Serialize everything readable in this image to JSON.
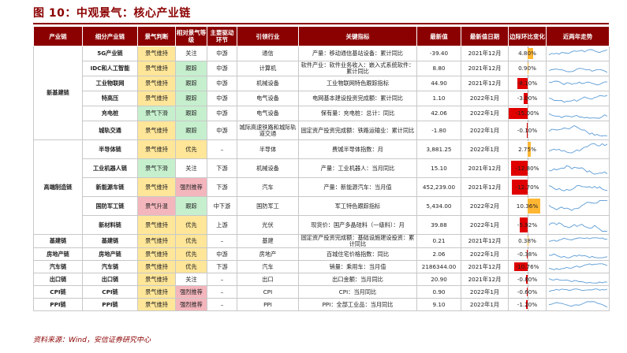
{
  "title": "图 10：中观景气：核心产业链",
  "headers": [
    "产业链",
    "细分产业链",
    "景气判断",
    "相对景气等级",
    "主要驱动环节",
    "引领行业",
    "关键指标",
    "最新值",
    "最新值日期",
    "边际环比变化",
    "近两年走势"
  ],
  "rows": [
    {
      "seg": "新基建链",
      "sub": "5G产业链",
      "judge": "景气维持",
      "judge_color": "yellow",
      "level": "关注",
      "level_color": "white",
      "drive": "中游",
      "industry": "通信",
      "indicator": "产量：移动通信基站设备：累计同比",
      "value": "-39.40",
      "date": "2021年12月",
      "change": "4.80%",
      "change_pct": 4.8
    },
    {
      "seg": "新基建链",
      "sub": "IDC和人工智能",
      "judge": "景气维持",
      "judge_color": "yellow",
      "level": "跟踪",
      "level_color": "green",
      "drive": "中游",
      "industry": "计算机",
      "indicator": "软件产业：软件业务收入：嵌入式系统软件：累计同比",
      "value": "8.80",
      "date": "2021年12月",
      "change": "0.90%",
      "change_pct": 0.9
    },
    {
      "seg": "新基建链",
      "sub": "工业物联网",
      "judge": "景气维持",
      "judge_color": "yellow",
      "level": "跟踪",
      "level_color": "green",
      "drive": "中游",
      "industry": "机械设备",
      "indicator": "工业物联网特色跟踪指标",
      "value": "44.90",
      "date": "2021年12月",
      "change": "-8.10%",
      "change_pct": -8.1
    },
    {
      "seg": "新基建链",
      "sub": "特高压",
      "judge": "景气维持",
      "judge_color": "yellow",
      "level": "跟踪",
      "level_color": "green",
      "drive": "中游",
      "industry": "电气设备",
      "indicator": "电网基本建设投资完成额：累计同比",
      "value": "1.10",
      "date": "2022年1月",
      "change": "-3.00%",
      "change_pct": -3.0
    },
    {
      "seg": "新基建链",
      "sub": "充电桩",
      "judge": "景气下滑",
      "judge_color": "green",
      "level": "跟踪",
      "level_color": "green",
      "drive": "中游",
      "industry": "电气设备",
      "indicator": "保有量：充电桩：总计：同比",
      "value": "42.06",
      "date": "2022年1月",
      "change": "-15.00%",
      "change_pct": -15.0
    },
    {
      "seg": "新基建链",
      "sub": "城轨交通",
      "judge": "景气维持",
      "judge_color": "yellow",
      "level": "跟踪",
      "level_color": "green",
      "drive": "中游",
      "industry": "城际高速铁路和城际轨道交通",
      "indicator": "固定资产投资完成额：铁路运输业：累计同比",
      "value": "-1.80",
      "date": "2022年1月",
      "change": "-0.10%",
      "change_pct": -0.1
    },
    {
      "seg": "高端制造链",
      "sub": "半导体链",
      "judge": "景气维持",
      "judge_color": "yellow",
      "level": "优先",
      "level_color": "yellow",
      "drive": "–",
      "industry": "半导体",
      "indicator": "费城半导体指数：月",
      "value": "3,881.25",
      "date": "2022年1月",
      "change": "2.75%",
      "change_pct": 2.75
    },
    {
      "seg": "高端制造链",
      "sub": "工业机器人链",
      "judge": "景气下滑",
      "judge_color": "green",
      "level": "关注",
      "level_color": "white",
      "drive": "下游",
      "industry": "机械设备",
      "indicator": "产量：工业机器人：当月同比",
      "value": "15.10",
      "date": "2021年12月",
      "change": "-12.80%",
      "change_pct": -12.8
    },
    {
      "seg": "高端制造链",
      "sub": "新能源车链",
      "judge": "景气维持",
      "judge_color": "yellow",
      "level": "强烈推荐",
      "level_color": "red",
      "drive": "下游",
      "industry": "汽车",
      "indicator": "产量：新能源汽车：当月值",
      "value": "452,239.00",
      "date": "2021年12月",
      "change": "-12.70%",
      "change_pct": -12.7
    },
    {
      "seg": "高端制造链",
      "sub": "国防军工链",
      "judge": "景气升温",
      "judge_color": "red",
      "level": "跟踪",
      "level_color": "green",
      "drive": "中下游",
      "industry": "国防军工",
      "indicator": "军工特色跟踪指标",
      "value": "5,434.00",
      "date": "2022年2月",
      "change": "10.36%",
      "change_pct": 10.36
    },
    {
      "seg": "高端制造链",
      "sub": "新材料链",
      "judge": "景气维持",
      "judge_color": "yellow",
      "level": "优先",
      "level_color": "yellow",
      "drive": "上游",
      "industry": "光伏",
      "indicator": "现货价：国产多晶硅料（一级料）：月",
      "value": "39.88",
      "date": "2022年1月",
      "change": "-5.92%",
      "change_pct": -5.92
    },
    {
      "seg": "基建链",
      "sub": "基建链",
      "judge": "景气维持",
      "judge_color": "yellow",
      "level": "优先",
      "level_color": "yellow",
      "drive": "–",
      "industry": "基建",
      "indicator": "固定资产投资完成额：基础设施建设投资：累计同比",
      "value": "0.21",
      "date": "2021年12月",
      "change": "0.38%",
      "change_pct": 0.38
    },
    {
      "seg": "房地产链",
      "sub": "房地产链",
      "judge": "景气维持",
      "judge_color": "yellow",
      "level": "优先",
      "level_color": "yellow",
      "drive": "中游",
      "industry": "房地产",
      "indicator": "百城住宅价格指数：同比",
      "value": "2.06",
      "date": "2022年1月",
      "change": "-0.38%",
      "change_pct": -0.38
    },
    {
      "seg": "汽车链",
      "sub": "汽车链",
      "judge": "景气维持",
      "judge_color": "yellow",
      "level": "优先",
      "level_color": "yellow",
      "drive": "下游",
      "industry": "汽车",
      "indicator": "销量：乘用车：当月值",
      "value": "2186344.00",
      "date": "2021年12月",
      "change": "-10.76%",
      "change_pct": -10.76
    },
    {
      "seg": "出口链",
      "sub": "出口链",
      "judge": "景气维持",
      "judge_color": "yellow",
      "level": "关注",
      "level_color": "white",
      "drive": "–",
      "industry": "出口",
      "indicator": "出口金额：当月同比",
      "value": "20.90",
      "date": "2021年12月",
      "change": "-0.80%",
      "change_pct": -0.8
    },
    {
      "seg": "CPI链",
      "sub": "CPI链",
      "judge": "景气维持",
      "judge_color": "yellow",
      "level": "强烈推荐",
      "level_color": "red",
      "drive": "–",
      "industry": "CPI",
      "indicator": "CPI：当月同比",
      "value": "0.90",
      "date": "2022年1月",
      "change": "-0.60%",
      "change_pct": -0.6
    },
    {
      "seg": "PPI链",
      "sub": "PPI链",
      "judge": "景气维持",
      "judge_color": "yellow",
      "level": "强烈推荐",
      "level_color": "red",
      "drive": "–",
      "industry": "PPI",
      "indicator": "PPI：全部工业品：当月同比",
      "value": "9.10",
      "date": "2022年1月",
      "change": "-1.20%",
      "change_pct": -1.2
    }
  ],
  "source": "资料来源：Wind，安信证券研究中心",
  "colors": {
    "header": "#8b0000",
    "yellow": "#ffe699",
    "green": "#c6efce",
    "red": "#f4b6bd",
    "bar_pos": "#ffb733",
    "bar_neg": "#e00000",
    "spark": "#5b9bd5"
  }
}
